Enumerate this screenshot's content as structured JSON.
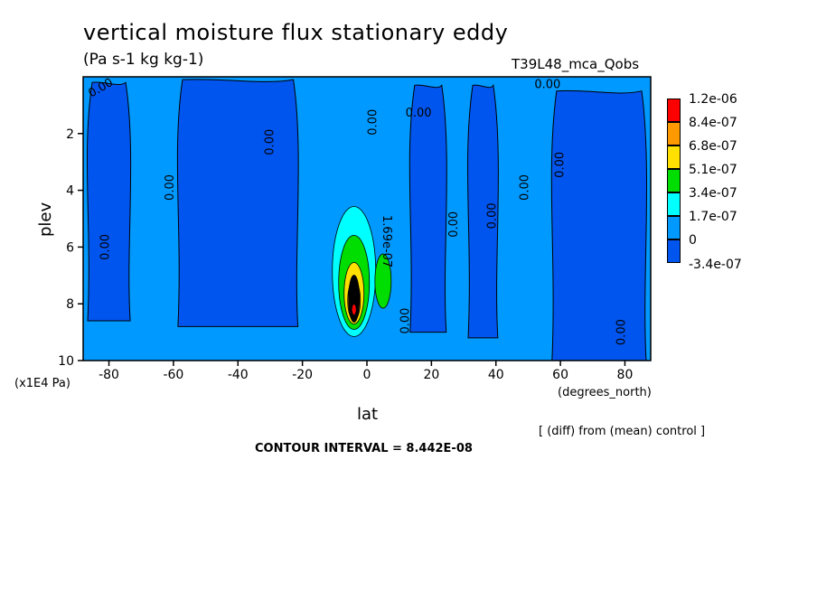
{
  "header": {
    "title": "vertical moisture flux stationary eddy",
    "units": "(Pa s-1 kg kg-1)",
    "run": "T39L48_mca_Qobs"
  },
  "footer": {
    "contour_interval": "CONTOUR INTERVAL = 8.442E-08",
    "diff_note": "[ (diff) from (mean) control ]"
  },
  "chart_data": {
    "type": "heatmap",
    "title": "vertical moisture flux stationary eddy",
    "subtitle": "(Pa s-1 kg kg-1)",
    "xlabel": "lat",
    "xunits": "(degrees_north)",
    "ylabel": "plev",
    "yunits": "(x1E4 Pa)",
    "xlim": [
      -88,
      88
    ],
    "ylim": [
      10,
      0
    ],
    "x_ticks": [
      -80,
      -60,
      -40,
      -20,
      0,
      20,
      40,
      60,
      80
    ],
    "x_tick_labels": [
      "-80",
      "-60",
      "-40",
      "-20",
      "0",
      "20",
      "40",
      "60",
      "80"
    ],
    "y_ticks": [
      2,
      4,
      6,
      8,
      10
    ],
    "y_tick_labels": [
      "2",
      "4",
      "6",
      "8",
      "10"
    ],
    "levels": [
      "1.2e-06",
      "8.4e-07",
      "6.8e-07",
      "5.1e-07",
      "3.4e-07",
      "1.7e-07",
      "0",
      "-3.4e-07"
    ],
    "level_colors": [
      "#ff0000",
      "#ff9900",
      "#ffe000",
      "#00dd00",
      "#00ffff",
      "#0099ff",
      "#0055ee"
    ],
    "background_color": "#0099ff",
    "negative_regions": [
      {
        "lat": [
          -88,
          -72
        ],
        "plev": [
          0.2,
          8.6
        ]
      },
      {
        "lat": [
          -60,
          -20
        ],
        "plev": [
          0.1,
          8.8
        ]
      },
      {
        "lat": [
          12,
          26
        ],
        "plev": [
          0.3,
          9.0
        ]
      },
      {
        "lat": [
          30,
          42
        ],
        "plev": [
          0.3,
          9.2
        ]
      },
      {
        "lat": [
          56,
          88
        ],
        "plev": [
          0.5,
          10
        ]
      }
    ],
    "maximum": {
      "lat": -4,
      "plev": 8.2,
      "value": "1.2e-06"
    },
    "contour_labels": [
      {
        "text": "0.00",
        "lat": -82,
        "plev": 0.5,
        "angle": -30
      },
      {
        "text": "0.00",
        "lat": -80,
        "plev": 6.0,
        "angle": -90
      },
      {
        "text": "0.00",
        "lat": -60,
        "plev": 3.9,
        "angle": -90
      },
      {
        "text": "0.00",
        "lat": -29,
        "plev": 2.3,
        "angle": -90
      },
      {
        "text": "0.00",
        "lat": 3,
        "plev": 1.6,
        "angle": -90
      },
      {
        "text": "0.00",
        "lat": 16,
        "plev": 1.4,
        "angle": 0
      },
      {
        "text": "0.00",
        "lat": 56,
        "plev": 0.4,
        "angle": 0
      },
      {
        "text": "0.00",
        "lat": 28,
        "plev": 5.2,
        "angle": -90
      },
      {
        "text": "0.00",
        "lat": 40,
        "plev": 4.9,
        "angle": -90
      },
      {
        "text": "0.00",
        "lat": 50,
        "plev": 3.9,
        "angle": -90
      },
      {
        "text": "0.00",
        "lat": 61,
        "plev": 3.1,
        "angle": -90
      },
      {
        "text": "0.00",
        "lat": 13,
        "plev": 8.6,
        "angle": -90
      },
      {
        "text": "0.00",
        "lat": 80,
        "plev": 9.0,
        "angle": -90
      },
      {
        "text": "1.69e-07",
        "lat": 5,
        "plev": 5.8,
        "angle": 90
      }
    ]
  }
}
